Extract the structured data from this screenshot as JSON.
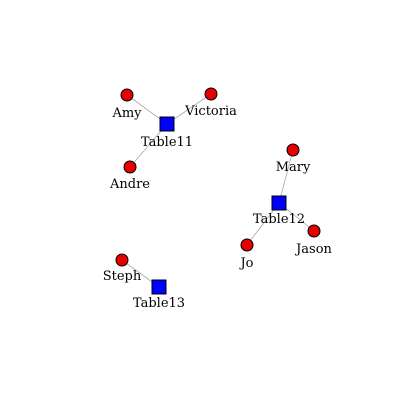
{
  "graph": {
    "colors": {
      "person": "#e60000",
      "table": "#0000ff",
      "edge": "#a8a8a8",
      "label": "#000000"
    },
    "shapes": {
      "person": "circle",
      "table": "square"
    },
    "nodes": [
      {
        "id": "amy",
        "label": "Amy",
        "type": "person"
      },
      {
        "id": "victoria",
        "label": "Victoria",
        "type": "person"
      },
      {
        "id": "andre",
        "label": "Andre",
        "type": "person"
      },
      {
        "id": "table11",
        "label": "Table11",
        "type": "table"
      },
      {
        "id": "mary",
        "label": "Mary",
        "type": "person"
      },
      {
        "id": "table12",
        "label": "Table12",
        "type": "table"
      },
      {
        "id": "jo",
        "label": "Jo",
        "type": "person"
      },
      {
        "id": "jason",
        "label": "Jason",
        "type": "person"
      },
      {
        "id": "steph",
        "label": "Steph",
        "type": "person"
      },
      {
        "id": "table13",
        "label": "Table13",
        "type": "table"
      }
    ],
    "edges": [
      {
        "from": "amy",
        "to": "table11"
      },
      {
        "from": "victoria",
        "to": "table11"
      },
      {
        "from": "andre",
        "to": "table11"
      },
      {
        "from": "mary",
        "to": "table12"
      },
      {
        "from": "jo",
        "to": "table12"
      },
      {
        "from": "jason",
        "to": "table12"
      },
      {
        "from": "steph",
        "to": "table13"
      }
    ]
  }
}
